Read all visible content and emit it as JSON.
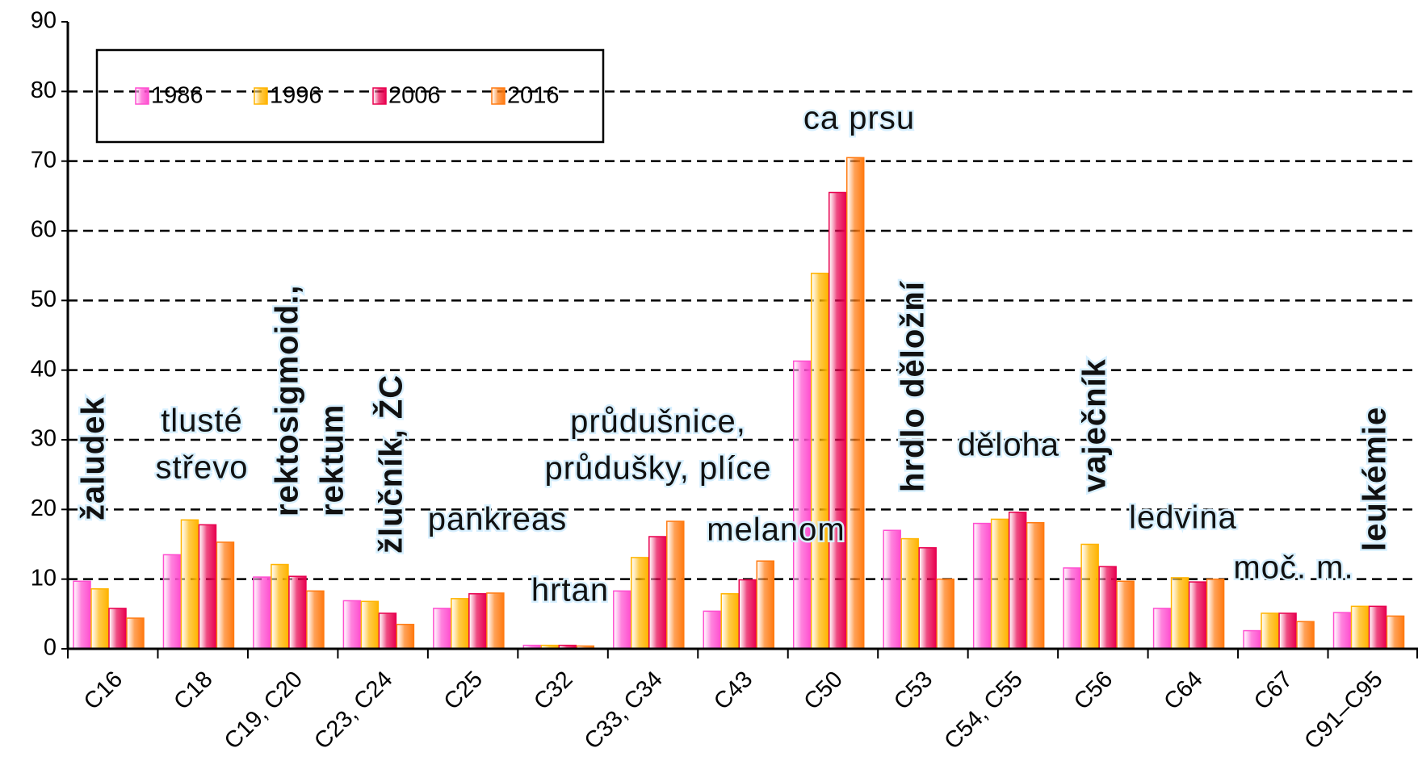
{
  "chart_data": {
    "type": "bar",
    "categories": [
      "C16",
      "C18",
      "C19, C20",
      "C23, C24",
      "C25",
      "C32",
      "C33, C34",
      "C43",
      "C50",
      "C53",
      "C54, C55",
      "C56",
      "C64",
      "C67",
      "C91–C95"
    ],
    "series": [
      {
        "name": "1986",
        "color": "#ff4fd0",
        "values": [
          9.7,
          13.5,
          10.3,
          6.9,
          5.8,
          0.5,
          8.3,
          5.4,
          41.3,
          17.0,
          18.0,
          11.6,
          5.8,
          2.6,
          5.2
        ]
      },
      {
        "name": "1996",
        "color": "#ffb400",
        "values": [
          8.6,
          18.5,
          12.1,
          6.8,
          7.2,
          0.5,
          13.1,
          7.9,
          53.9,
          15.8,
          18.6,
          15.0,
          10.2,
          5.1,
          6.1
        ]
      },
      {
        "name": "2006",
        "color": "#e8004f",
        "values": [
          5.8,
          17.8,
          10.4,
          5.1,
          7.9,
          0.5,
          16.1,
          9.9,
          65.5,
          14.5,
          19.6,
          11.8,
          9.6,
          5.1,
          6.1
        ]
      },
      {
        "name": "2016",
        "color": "#ff7a10",
        "values": [
          4.4,
          15.3,
          8.3,
          3.5,
          8.0,
          0.4,
          18.3,
          12.6,
          70.5,
          10.0,
          18.1,
          9.7,
          10.0,
          3.9,
          4.7
        ]
      }
    ],
    "ylim": [
      0,
      90
    ],
    "yticks": [
      0,
      10,
      20,
      30,
      40,
      50,
      60,
      70,
      80,
      90
    ],
    "grid": true,
    "legend": "top-left",
    "annotations": [
      [
        "žaludek"
      ],
      [
        "tlusté",
        "střevo"
      ],
      [
        "rektosigmoid.,",
        "rektum"
      ],
      [
        "žlučník, ŽC"
      ],
      [
        "pankreas"
      ],
      [
        "hrtan"
      ],
      [
        "průdušnice,",
        "průdušky, plíce"
      ],
      [
        "melanom"
      ],
      [
        "ca prsu"
      ],
      [
        "hrdlo děložní"
      ],
      [
        "děloha"
      ],
      [
        "vaječník"
      ],
      [
        "ledvina"
      ],
      [
        "moč. m."
      ],
      [
        "leukémie"
      ]
    ]
  }
}
